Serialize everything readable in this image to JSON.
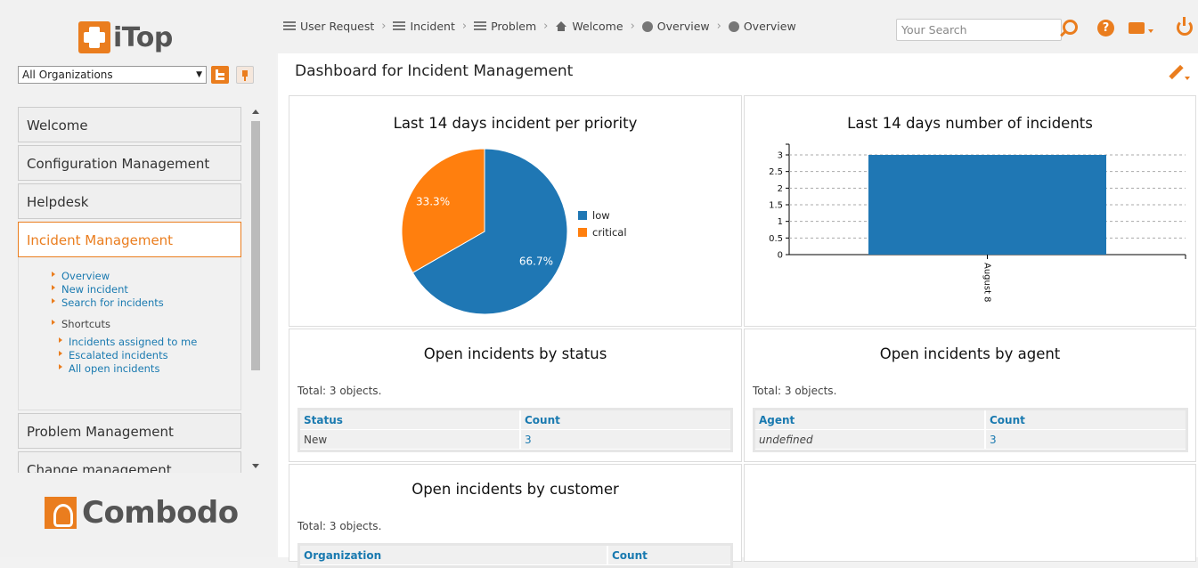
{
  "app": {
    "logo_text": "iTop",
    "footer_logo_text": "Combodo"
  },
  "org_filter": {
    "selected": "All Organizations"
  },
  "menu": {
    "groups": [
      {
        "label": "Welcome"
      },
      {
        "label": "Configuration Management"
      },
      {
        "label": "Helpdesk"
      },
      {
        "label": "Incident Management"
      },
      {
        "label": "Problem Management"
      },
      {
        "label": "Change management"
      }
    ],
    "incident_items": [
      "Overview",
      "New incident",
      "Search for incidents"
    ],
    "shortcuts_label": "Shortcuts",
    "shortcuts": [
      "Incidents assigned to me",
      "Escalated incidents",
      "All open incidents"
    ]
  },
  "breadcrumbs": [
    {
      "label": "User Request",
      "icon": "list-icon"
    },
    {
      "label": "Incident",
      "icon": "list-icon"
    },
    {
      "label": "Problem",
      "icon": "list-icon"
    },
    {
      "label": "Welcome",
      "icon": "home-icon"
    },
    {
      "label": "Overview",
      "icon": "pie-icon"
    },
    {
      "label": "Overview",
      "icon": "pie-icon"
    }
  ],
  "search": {
    "placeholder": "Your Search"
  },
  "page": {
    "title": "Dashboard for Incident Management"
  },
  "dashlets": {
    "priority": {
      "title": "Last 14 days incident per priority"
    },
    "count": {
      "title": "Last 14 days number of incidents"
    },
    "status": {
      "title": "Open incidents by status",
      "total": "Total: 3 objects.",
      "headers": [
        "Status",
        "Count"
      ],
      "rows": [
        [
          "New",
          "3"
        ]
      ]
    },
    "agent": {
      "title": "Open incidents by agent",
      "total": "Total: 3 objects.",
      "headers": [
        "Agent",
        "Count"
      ],
      "rows": [
        [
          "undefined",
          "3"
        ]
      ]
    },
    "customer": {
      "title": "Open incidents by customer",
      "total": "Total: 3 objects.",
      "headers": [
        "Organization",
        "Count"
      ]
    }
  },
  "colors": {
    "accent": "#ea7d1e",
    "link": "#1a7ab0",
    "blue": "#1f77b4",
    "orange": "#ff7f0e"
  },
  "chart_data": [
    {
      "type": "pie",
      "title": "Last 14 days incident per priority",
      "categories": [
        "low",
        "critical"
      ],
      "values": [
        66.7,
        33.3
      ],
      "labels": [
        "66.7%",
        "33.3%"
      ],
      "colors": [
        "#1f77b4",
        "#ff7f0e"
      ],
      "legend": "right"
    },
    {
      "type": "bar",
      "title": "Last 14 days number of incidents",
      "categories": [
        "August 8"
      ],
      "values": [
        3
      ],
      "ylim": [
        0,
        3
      ],
      "yticks": [
        "0",
        "0.5",
        "1",
        "1.5",
        "2",
        "2.5",
        "3"
      ],
      "grid": true,
      "colors": [
        "#1f77b4"
      ]
    }
  ]
}
